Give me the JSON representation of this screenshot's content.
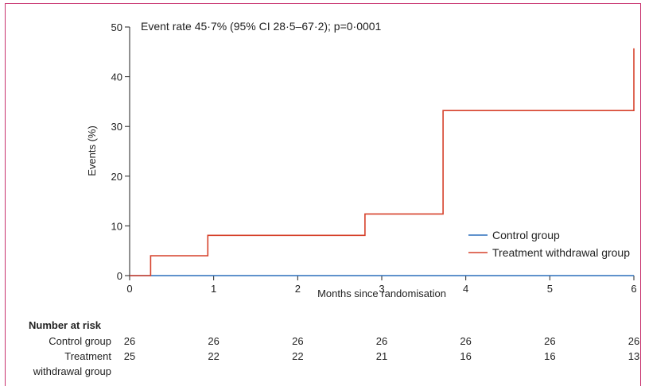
{
  "chart_data": {
    "type": "line",
    "step": true,
    "annotation": "Event rate 45·7% (95% CI 28·5–67·2); p=0·0001",
    "xlabel": "Months since randomisation",
    "ylabel": "Events (%)",
    "xlim": [
      0,
      6
    ],
    "ylim": [
      0,
      50
    ],
    "xticks": [
      "0",
      "1",
      "2",
      "3",
      "4",
      "5",
      "6"
    ],
    "yticks": [
      "0",
      "10",
      "20",
      "30",
      "40",
      "50"
    ],
    "legend_position": "bottom-right",
    "series": [
      {
        "name": "Control group",
        "color": "#2a6ebb",
        "x": [
          0,
          6
        ],
        "y": [
          0,
          0
        ]
      },
      {
        "name": "Treatment withdrawal group",
        "color": "#d6402a",
        "x": [
          0,
          0.25,
          0.25,
          0.93,
          0.93,
          2.8,
          2.8,
          3.73,
          3.73,
          6,
          6
        ],
        "y": [
          0,
          0,
          4,
          4,
          8.1,
          8.1,
          12.4,
          12.4,
          33.2,
          33.2,
          45.7
        ]
      }
    ]
  },
  "risk_table": {
    "title": "Number at risk",
    "rows": [
      {
        "label": [
          "Control group"
        ],
        "values": [
          "26",
          "26",
          "26",
          "26",
          "26",
          "26",
          "26"
        ]
      },
      {
        "label": [
          "Treatment",
          "withdrawal group"
        ],
        "values": [
          "25",
          "22",
          "22",
          "21",
          "16",
          "16",
          "13"
        ]
      }
    ]
  }
}
